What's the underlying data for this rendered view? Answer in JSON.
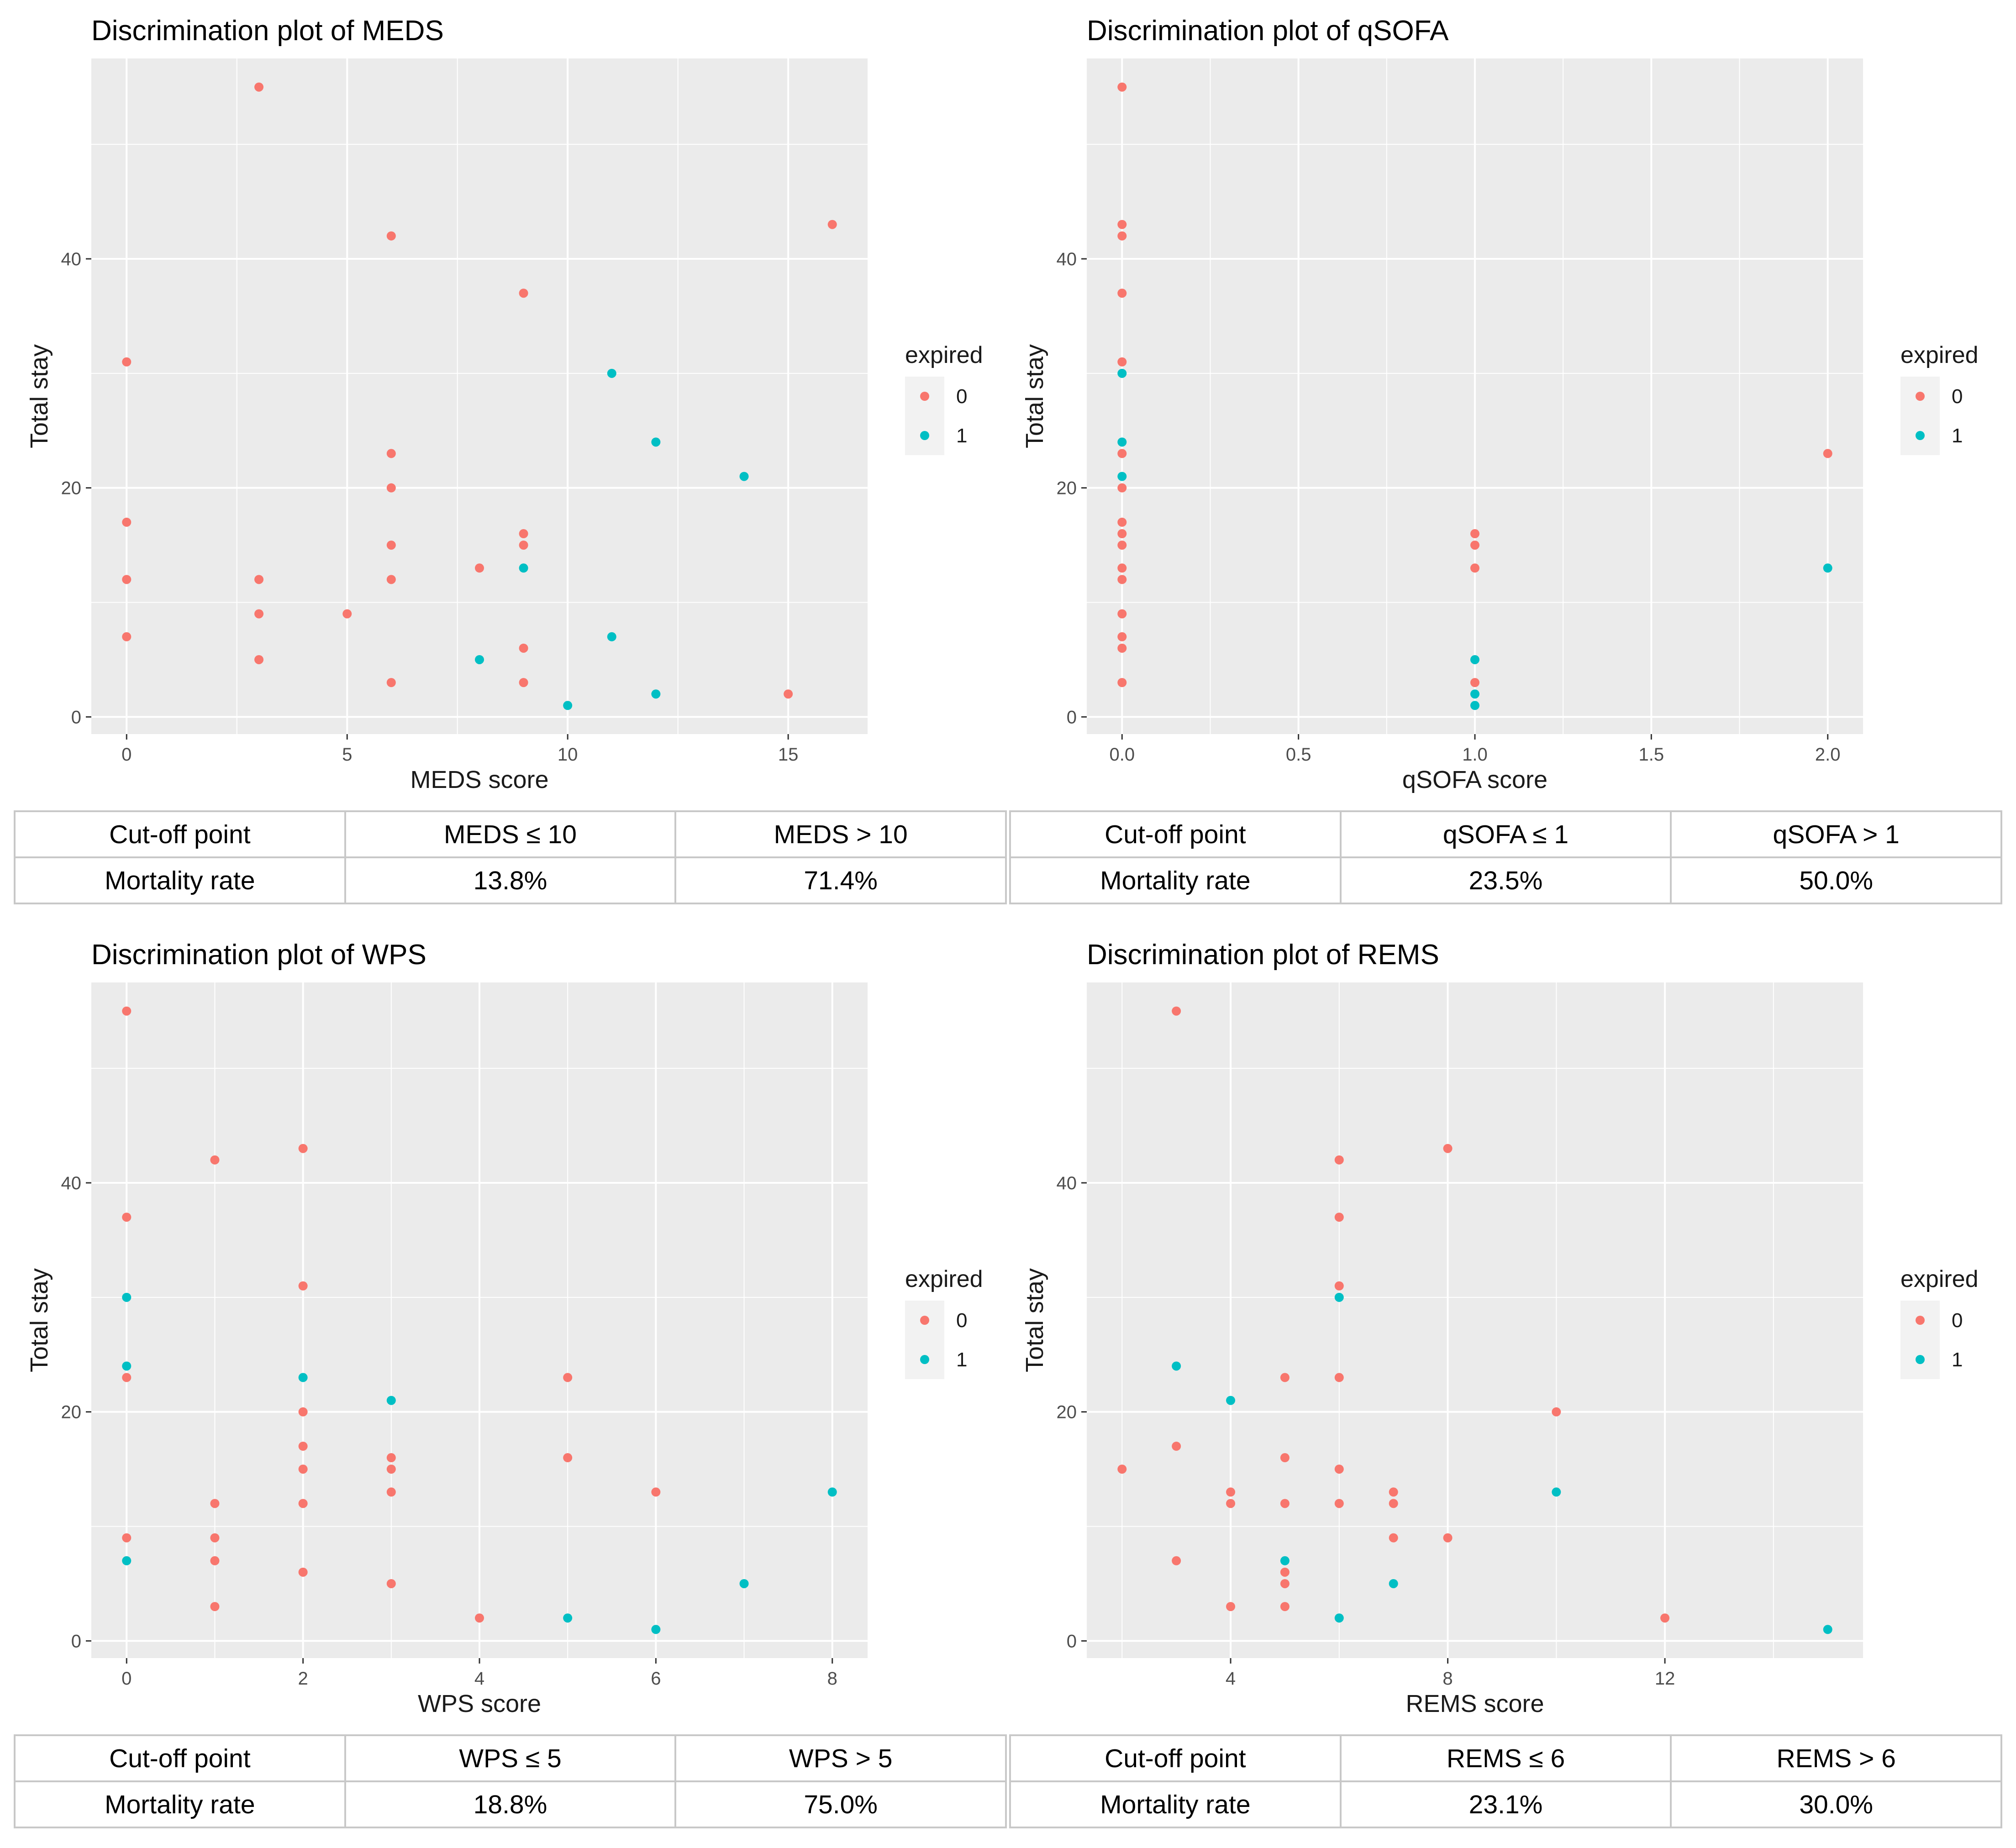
{
  "colors": {
    "expired_0": "#F8766D",
    "expired_1": "#00BFC4",
    "panel_bg": "#EBEBEB",
    "grid": "#FFFFFF"
  },
  "charts": [
    {
      "title": "Discrimination plot of MEDS",
      "chart_data": {
        "type": "scatter",
        "title": "Discrimination plot of MEDS",
        "xlabel": "MEDS score",
        "ylabel": "Total stay",
        "xlim": [
          -0.8,
          16.8
        ],
        "ylim": [
          -1.5,
          57.5
        ],
        "xticks": [
          0,
          5,
          10,
          15
        ],
        "xtick_labels": [
          "0",
          "5",
          "10",
          "15"
        ],
        "yticks": [
          0,
          20,
          40
        ],
        "ytick_labels": [
          "0",
          "20",
          "40"
        ],
        "grid": true,
        "legend": {
          "title": "expired",
          "position": "right",
          "labels": [
            "0",
            "1"
          ]
        },
        "series": [
          {
            "name": "0",
            "points": [
              [
                0,
                31
              ],
              [
                0,
                17
              ],
              [
                0,
                12
              ],
              [
                0,
                7
              ],
              [
                3,
                55
              ],
              [
                3,
                12
              ],
              [
                3,
                9
              ],
              [
                3,
                5
              ],
              [
                5,
                9
              ],
              [
                6,
                42
              ],
              [
                6,
                23
              ],
              [
                6,
                20
              ],
              [
                6,
                15
              ],
              [
                6,
                12
              ],
              [
                6,
                3
              ],
              [
                8,
                13
              ],
              [
                9,
                37
              ],
              [
                9,
                16
              ],
              [
                9,
                15
              ],
              [
                9,
                6
              ],
              [
                9,
                3
              ],
              [
                15,
                2
              ],
              [
                16,
                43
              ]
            ]
          },
          {
            "name": "1",
            "points": [
              [
                8,
                5
              ],
              [
                9,
                13
              ],
              [
                10,
                1
              ],
              [
                11,
                30
              ],
              [
                11,
                7
              ],
              [
                12,
                24
              ],
              [
                12,
                2
              ],
              [
                14,
                21
              ]
            ]
          }
        ]
      },
      "table": {
        "header": [
          "Cut-off point",
          "MEDS ≤ 10",
          "MEDS > 10"
        ],
        "row": [
          "Mortality rate",
          "13.8%",
          "71.4%"
        ]
      }
    },
    {
      "title": "Discrimination plot of qSOFA",
      "chart_data": {
        "type": "scatter",
        "title": "Discrimination plot of qSOFA",
        "xlabel": "qSOFA score",
        "ylabel": "Total stay",
        "xlim": [
          -0.1,
          2.1
        ],
        "ylim": [
          -1.5,
          57.5
        ],
        "xticks": [
          0,
          0.5,
          1,
          1.5,
          2
        ],
        "xtick_labels": [
          "0.0",
          "0.5",
          "1.0",
          "1.5",
          "2.0"
        ],
        "yticks": [
          0,
          20,
          40
        ],
        "ytick_labels": [
          "0",
          "20",
          "40"
        ],
        "grid": true,
        "legend": {
          "title": "expired",
          "position": "right",
          "labels": [
            "0",
            "1"
          ]
        },
        "series": [
          {
            "name": "0",
            "points": [
              [
                0,
                55
              ],
              [
                0,
                43
              ],
              [
                0,
                42
              ],
              [
                0,
                37
              ],
              [
                0,
                31
              ],
              [
                0,
                23
              ],
              [
                0,
                20
              ],
              [
                0,
                17
              ],
              [
                0,
                16
              ],
              [
                0,
                15
              ],
              [
                0,
                13
              ],
              [
                0,
                12
              ],
              [
                0,
                9
              ],
              [
                0,
                7
              ],
              [
                0,
                6
              ],
              [
                0,
                3
              ],
              [
                1,
                16
              ],
              [
                1,
                15
              ],
              [
                1,
                13
              ],
              [
                1,
                3
              ],
              [
                2,
                23
              ]
            ]
          },
          {
            "name": "1",
            "points": [
              [
                0,
                30
              ],
              [
                0,
                24
              ],
              [
                0,
                21
              ],
              [
                1,
                5
              ],
              [
                1,
                2
              ],
              [
                1,
                1
              ],
              [
                2,
                13
              ]
            ]
          }
        ]
      },
      "table": {
        "header": [
          "Cut-off point",
          "qSOFA ≤ 1",
          "qSOFA > 1"
        ],
        "row": [
          "Mortality rate",
          "23.5%",
          "50.0%"
        ]
      }
    },
    {
      "title": "Discrimination plot of WPS",
      "chart_data": {
        "type": "scatter",
        "title": "Discrimination plot of WPS",
        "xlabel": "WPS score",
        "ylabel": "Total stay",
        "xlim": [
          -0.4,
          8.4
        ],
        "ylim": [
          -1.5,
          57.5
        ],
        "xticks": [
          0,
          2,
          4,
          6,
          8
        ],
        "xtick_labels": [
          "0",
          "2",
          "4",
          "6",
          "8"
        ],
        "yticks": [
          0,
          20,
          40
        ],
        "ytick_labels": [
          "0",
          "20",
          "40"
        ],
        "grid": true,
        "legend": {
          "title": "expired",
          "position": "right",
          "labels": [
            "0",
            "1"
          ]
        },
        "series": [
          {
            "name": "0",
            "points": [
              [
                0,
                55
              ],
              [
                0,
                37
              ],
              [
                0,
                23
              ],
              [
                0,
                9
              ],
              [
                1,
                42
              ],
              [
                1,
                12
              ],
              [
                1,
                9
              ],
              [
                1,
                7
              ],
              [
                1,
                3
              ],
              [
                2,
                43
              ],
              [
                2,
                31
              ],
              [
                2,
                20
              ],
              [
                2,
                17
              ],
              [
                2,
                15
              ],
              [
                2,
                12
              ],
              [
                2,
                6
              ],
              [
                3,
                16
              ],
              [
                3,
                15
              ],
              [
                3,
                13
              ],
              [
                3,
                5
              ],
              [
                4,
                2
              ],
              [
                5,
                23
              ],
              [
                5,
                16
              ],
              [
                6,
                13
              ]
            ]
          },
          {
            "name": "1",
            "points": [
              [
                0,
                30
              ],
              [
                0,
                24
              ],
              [
                0,
                7
              ],
              [
                2,
                23
              ],
              [
                3,
                21
              ],
              [
                5,
                2
              ],
              [
                6,
                1
              ],
              [
                7,
                5
              ],
              [
                8,
                13
              ]
            ]
          }
        ]
      },
      "table": {
        "header": [
          "Cut-off point",
          "WPS ≤ 5",
          "WPS > 5"
        ],
        "row": [
          "Mortality rate",
          "18.8%",
          "75.0%"
        ]
      }
    },
    {
      "title": "Discrimination plot of REMS",
      "chart_data": {
        "type": "scatter",
        "title": "Discrimination plot of REMS",
        "xlabel": "REMS score",
        "ylabel": "Total stay",
        "xlim": [
          1.35,
          15.65
        ],
        "ylim": [
          -1.5,
          57.5
        ],
        "xticks": [
          4,
          8,
          12
        ],
        "xtick_labels": [
          "4",
          "8",
          "12"
        ],
        "yticks": [
          0,
          20,
          40
        ],
        "ytick_labels": [
          "0",
          "20",
          "40"
        ],
        "grid": true,
        "legend": {
          "title": "expired",
          "position": "right",
          "labels": [
            "0",
            "1"
          ]
        },
        "series": [
          {
            "name": "0",
            "points": [
              [
                2,
                15
              ],
              [
                3,
                55
              ],
              [
                3,
                17
              ],
              [
                3,
                7
              ],
              [
                4,
                13
              ],
              [
                4,
                12
              ],
              [
                4,
                3
              ],
              [
                5,
                23
              ],
              [
                5,
                16
              ],
              [
                5,
                12
              ],
              [
                5,
                6
              ],
              [
                5,
                5
              ],
              [
                5,
                3
              ],
              [
                6,
                42
              ],
              [
                6,
                37
              ],
              [
                6,
                31
              ],
              [
                6,
                23
              ],
              [
                6,
                15
              ],
              [
                6,
                12
              ],
              [
                7,
                13
              ],
              [
                7,
                12
              ],
              [
                7,
                9
              ],
              [
                8,
                43
              ],
              [
                8,
                9
              ],
              [
                10,
                20
              ],
              [
                12,
                2
              ]
            ]
          },
          {
            "name": "1",
            "points": [
              [
                3,
                24
              ],
              [
                4,
                21
              ],
              [
                5,
                7
              ],
              [
                6,
                30
              ],
              [
                6,
                2
              ],
              [
                7,
                5
              ],
              [
                10,
                13
              ],
              [
                15,
                1
              ]
            ]
          }
        ]
      },
      "table": {
        "header": [
          "Cut-off point",
          "REMS ≤ 6",
          "REMS > 6"
        ],
        "row": [
          "Mortality rate",
          "23.1%",
          "30.0%"
        ]
      }
    }
  ]
}
